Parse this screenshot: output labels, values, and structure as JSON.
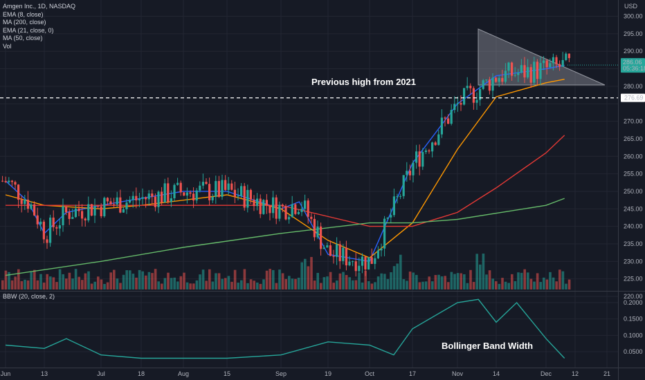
{
  "legend": {
    "symbol": "Amgen Inc., 1D, NASDAQ",
    "indicators": [
      "EMA (8, close)",
      "MA (200, close)",
      "EMA (21, close, 0)",
      "MA (50, close)",
      "Vol"
    ],
    "bbw": "BBW (20, close, 2)"
  },
  "currency": "USD",
  "price_axis": {
    "ticks": [
      "300.00",
      "295.00",
      "290.00",
      "285.00",
      "280.00",
      "275.00",
      "270.00",
      "265.00",
      "260.00",
      "255.00",
      "250.00",
      "245.00",
      "240.00",
      "235.00",
      "230.00",
      "225.00",
      "220.00"
    ]
  },
  "bbw_axis": {
    "ticks": [
      "0.2000",
      "0.1500",
      "0.1000",
      "0.0500"
    ]
  },
  "time_axis": {
    "labels": [
      "Jun",
      "13",
      "Jul",
      "18",
      "Aug",
      "15",
      "Sep",
      "19",
      "Oct",
      "17",
      "Nov",
      "14",
      "Dec",
      "12",
      "21"
    ]
  },
  "last_price": {
    "value": "286.06",
    "countdown": "05:36:18"
  },
  "level_label": "276.69",
  "annotations": {
    "previous_high": "Previous high from 2021",
    "bbw": "Bollinger Band Width"
  },
  "colors": {
    "up": "#26a69a",
    "down": "#ef5350",
    "ema8": "#2962ff",
    "ema21": "#ff9800",
    "ma50": "#e53935",
    "ma200": "#66bb6a",
    "bbw": "#26a69a",
    "background": "#161a25"
  },
  "chart_data": {
    "type": "candlestick",
    "title": "Amgen Inc., 1D, NASDAQ",
    "ylim": [
      217,
      303
    ],
    "resistance_level": 276.69,
    "series": [
      {
        "name": "EMA (8, close)",
        "points": [
          [
            "Jun 1",
            253
          ],
          [
            "Jun 8",
            247
          ],
          [
            "Jun 13",
            238
          ],
          [
            "Jun 20",
            244
          ],
          [
            "Jul 1",
            246
          ],
          [
            "Jul 18",
            248
          ],
          [
            "Aug 1",
            250
          ],
          [
            "Aug 15",
            250
          ],
          [
            "Sep 1",
            245
          ],
          [
            "Sep 8",
            247
          ],
          [
            "Sep 19",
            232
          ],
          [
            "Oct 1",
            230
          ],
          [
            "Oct 17",
            258
          ],
          [
            "Nov 1",
            275
          ],
          [
            "Nov 14",
            283
          ],
          [
            "Dec 1",
            285
          ],
          [
            "Dec 8",
            286
          ]
        ]
      },
      {
        "name": "EMA (21, close, 0)",
        "points": [
          [
            "Jun 1",
            249
          ],
          [
            "Jun 13",
            246
          ],
          [
            "Jul 1",
            245
          ],
          [
            "Jul 18",
            246
          ],
          [
            "Aug 15",
            249
          ],
          [
            "Sep 1",
            245
          ],
          [
            "Sep 19",
            236
          ],
          [
            "Oct 1",
            231
          ],
          [
            "Oct 17",
            241
          ],
          [
            "Nov 1",
            262
          ],
          [
            "Nov 14",
            277
          ],
          [
            "Dec 1",
            281
          ],
          [
            "Dec 8",
            282
          ]
        ]
      },
      {
        "name": "MA (50, close)",
        "points": [
          [
            "Jun 1",
            246
          ],
          [
            "Jul 1",
            246
          ],
          [
            "Aug 1",
            246
          ],
          [
            "Sep 1",
            246
          ],
          [
            "Oct 1",
            240
          ],
          [
            "Oct 17",
            240
          ],
          [
            "Nov 1",
            244
          ],
          [
            "Nov 14",
            251
          ],
          [
            "Dec 1",
            261
          ],
          [
            "Dec 8",
            266
          ]
        ]
      },
      {
        "name": "MA (200, close)",
        "points": [
          [
            "Jun 1",
            226
          ],
          [
            "Jul 1",
            230
          ],
          [
            "Aug 1",
            234
          ],
          [
            "Sep 1",
            238
          ],
          [
            "Oct 1",
            241
          ],
          [
            "Oct 17",
            241
          ],
          [
            "Nov 1",
            242
          ],
          [
            "Dec 1",
            246
          ],
          [
            "Dec 8",
            248
          ]
        ]
      },
      {
        "name": "BBW (20, close, 2)",
        "points": [
          [
            "Jun 1",
            0.07
          ],
          [
            "Jun 13",
            0.06
          ],
          [
            "Jun 20",
            0.09
          ],
          [
            "Jul 1",
            0.04
          ],
          [
            "Jul 18",
            0.03
          ],
          [
            "Aug 15",
            0.03
          ],
          [
            "Sep 1",
            0.04
          ],
          [
            "Sep 19",
            0.08
          ],
          [
            "Oct 1",
            0.07
          ],
          [
            "Oct 10",
            0.04
          ],
          [
            "Oct 17",
            0.12
          ],
          [
            "Nov 1",
            0.2
          ],
          [
            "Nov 8",
            0.21
          ],
          [
            "Nov 14",
            0.14
          ],
          [
            "Nov 21",
            0.2
          ],
          [
            "Dec 1",
            0.09
          ],
          [
            "Dec 8",
            0.03
          ]
        ]
      }
    ]
  }
}
